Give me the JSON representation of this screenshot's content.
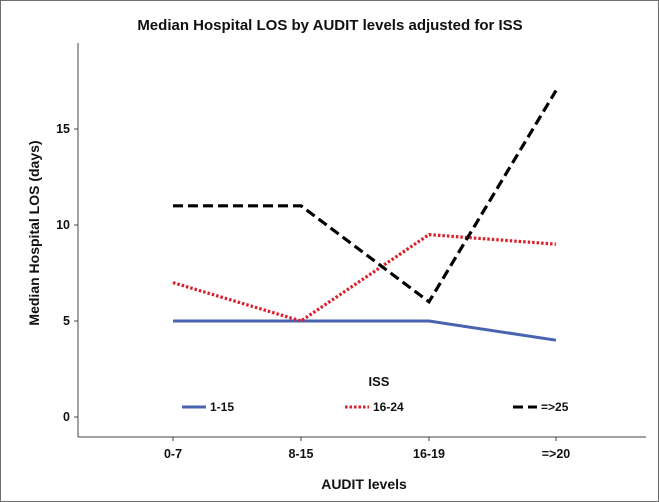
{
  "chart_data": {
    "type": "line",
    "title": "Median Hospital LOS by AUDIT levels adjusted for ISS",
    "xlabel": "AUDIT levels",
    "ylabel": "Median Hospital LOS (days)",
    "categories": [
      "0-7",
      "8-15",
      "16-19",
      "=>20"
    ],
    "yticks": [
      "0",
      "5",
      "10",
      "15"
    ],
    "ylim": [
      0,
      18
    ],
    "grid": false,
    "legend": {
      "title": "ISS",
      "placement": "bottom-inside",
      "entries": [
        "1-15",
        "16-24",
        "=>25"
      ]
    },
    "series": [
      {
        "name": "1-15",
        "values": [
          5,
          5,
          5,
          4
        ],
        "color": "#4a63b0",
        "style": "solid"
      },
      {
        "name": "16-24",
        "values": [
          7,
          5,
          9.5,
          9
        ],
        "color": "#d9202b",
        "style": "dotted"
      },
      {
        "name": "=>25",
        "values": [
          11,
          11,
          6,
          17
        ],
        "color": "#000000",
        "style": "dashed"
      }
    ]
  }
}
